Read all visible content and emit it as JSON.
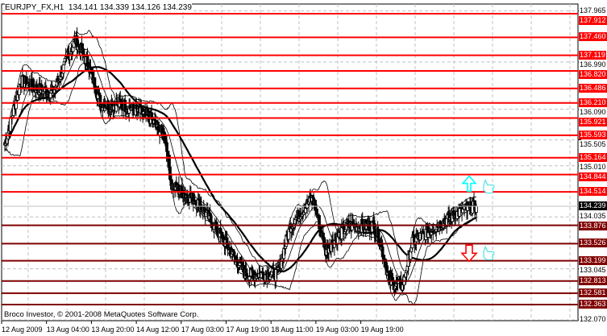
{
  "header": {
    "symbol_period": "EURJPY_FX,H1",
    "open": "134.141",
    "high": "134.339",
    "low": "134.126",
    "close": "134.239"
  },
  "footer": {
    "copyright": "Broco Investor, © 2001-2008 MetaQuotes Software Corp."
  },
  "time_axis": [
    "12 Aug 2009",
    "13 Aug 04:00",
    "13 Aug 20:00",
    "14 Aug 12:00",
    "17 Aug 03:00",
    "17 Aug 19:00",
    "18 Aug 11:00",
    "19 Aug 03:00",
    "19 Aug 19:00"
  ],
  "price_axis": [
    "137.965",
    "136.990",
    "136.090",
    "135.505",
    "135.010",
    "134.035",
    "133.045",
    "132.070"
  ],
  "current_price": "134.239",
  "levels": [
    {
      "price": "137.912",
      "role": "resistance"
    },
    {
      "price": "137.460",
      "role": "resistance"
    },
    {
      "price": "137.119",
      "role": "resistance"
    },
    {
      "price": "136.820",
      "role": "resistance"
    },
    {
      "price": "136.486",
      "role": "resistance"
    },
    {
      "price": "136.210",
      "role": "resistance"
    },
    {
      "price": "135.921",
      "role": "resistance"
    },
    {
      "price": "135.593",
      "role": "resistance"
    },
    {
      "price": "135.164",
      "role": "resistance"
    },
    {
      "price": "134.844",
      "role": "resistance"
    },
    {
      "price": "134.514",
      "role": "resistance"
    },
    {
      "price": "133.876",
      "role": "support"
    },
    {
      "price": "133.526",
      "role": "support"
    },
    {
      "price": "133.199",
      "role": "support"
    },
    {
      "price": "132.813",
      "role": "support"
    },
    {
      "price": "132.581",
      "role": "support"
    },
    {
      "price": "132.363",
      "role": "support"
    }
  ],
  "colors": {
    "resistance": "#ff0000",
    "support": "#800000",
    "current": "#000000",
    "up_arrow": "#00ffff",
    "down_arrow": "#ff0000",
    "thumb": "#33dddd",
    "grid": "#c0c0c0"
  },
  "signals": [
    {
      "icon": "arrow-up-icon",
      "level": "134.844"
    },
    {
      "icon": "thumbs-up-icon",
      "level": "134.844"
    },
    {
      "icon": "arrow-down-icon",
      "level": "133.526"
    },
    {
      "icon": "thumbs-up-icon",
      "level": "133.526"
    }
  ],
  "price_path": [
    [
      0,
      135.407
    ],
    [
      5,
      136.636
    ],
    [
      10,
      136.483
    ],
    [
      15,
      136.406
    ],
    [
      22,
      137.405
    ],
    [
      26,
      136.944
    ],
    [
      30,
      136.175
    ],
    [
      37,
      136.175
    ],
    [
      45,
      135.945
    ],
    [
      50,
      135.56
    ],
    [
      52,
      134.638
    ],
    [
      60,
      134.331
    ],
    [
      67,
      133.716
    ],
    [
      75,
      132.947
    ],
    [
      85,
      132.947
    ],
    [
      89,
      133.87
    ],
    [
      96,
      134.408
    ],
    [
      100,
      133.409
    ],
    [
      107,
      133.87
    ],
    [
      115,
      133.87
    ],
    [
      117,
      133.562
    ],
    [
      120,
      132.794
    ],
    [
      124,
      132.717
    ],
    [
      127,
      133.562
    ],
    [
      135,
      133.87
    ],
    [
      142,
      134.146
    ],
    [
      147,
      134.239
    ]
  ]
}
